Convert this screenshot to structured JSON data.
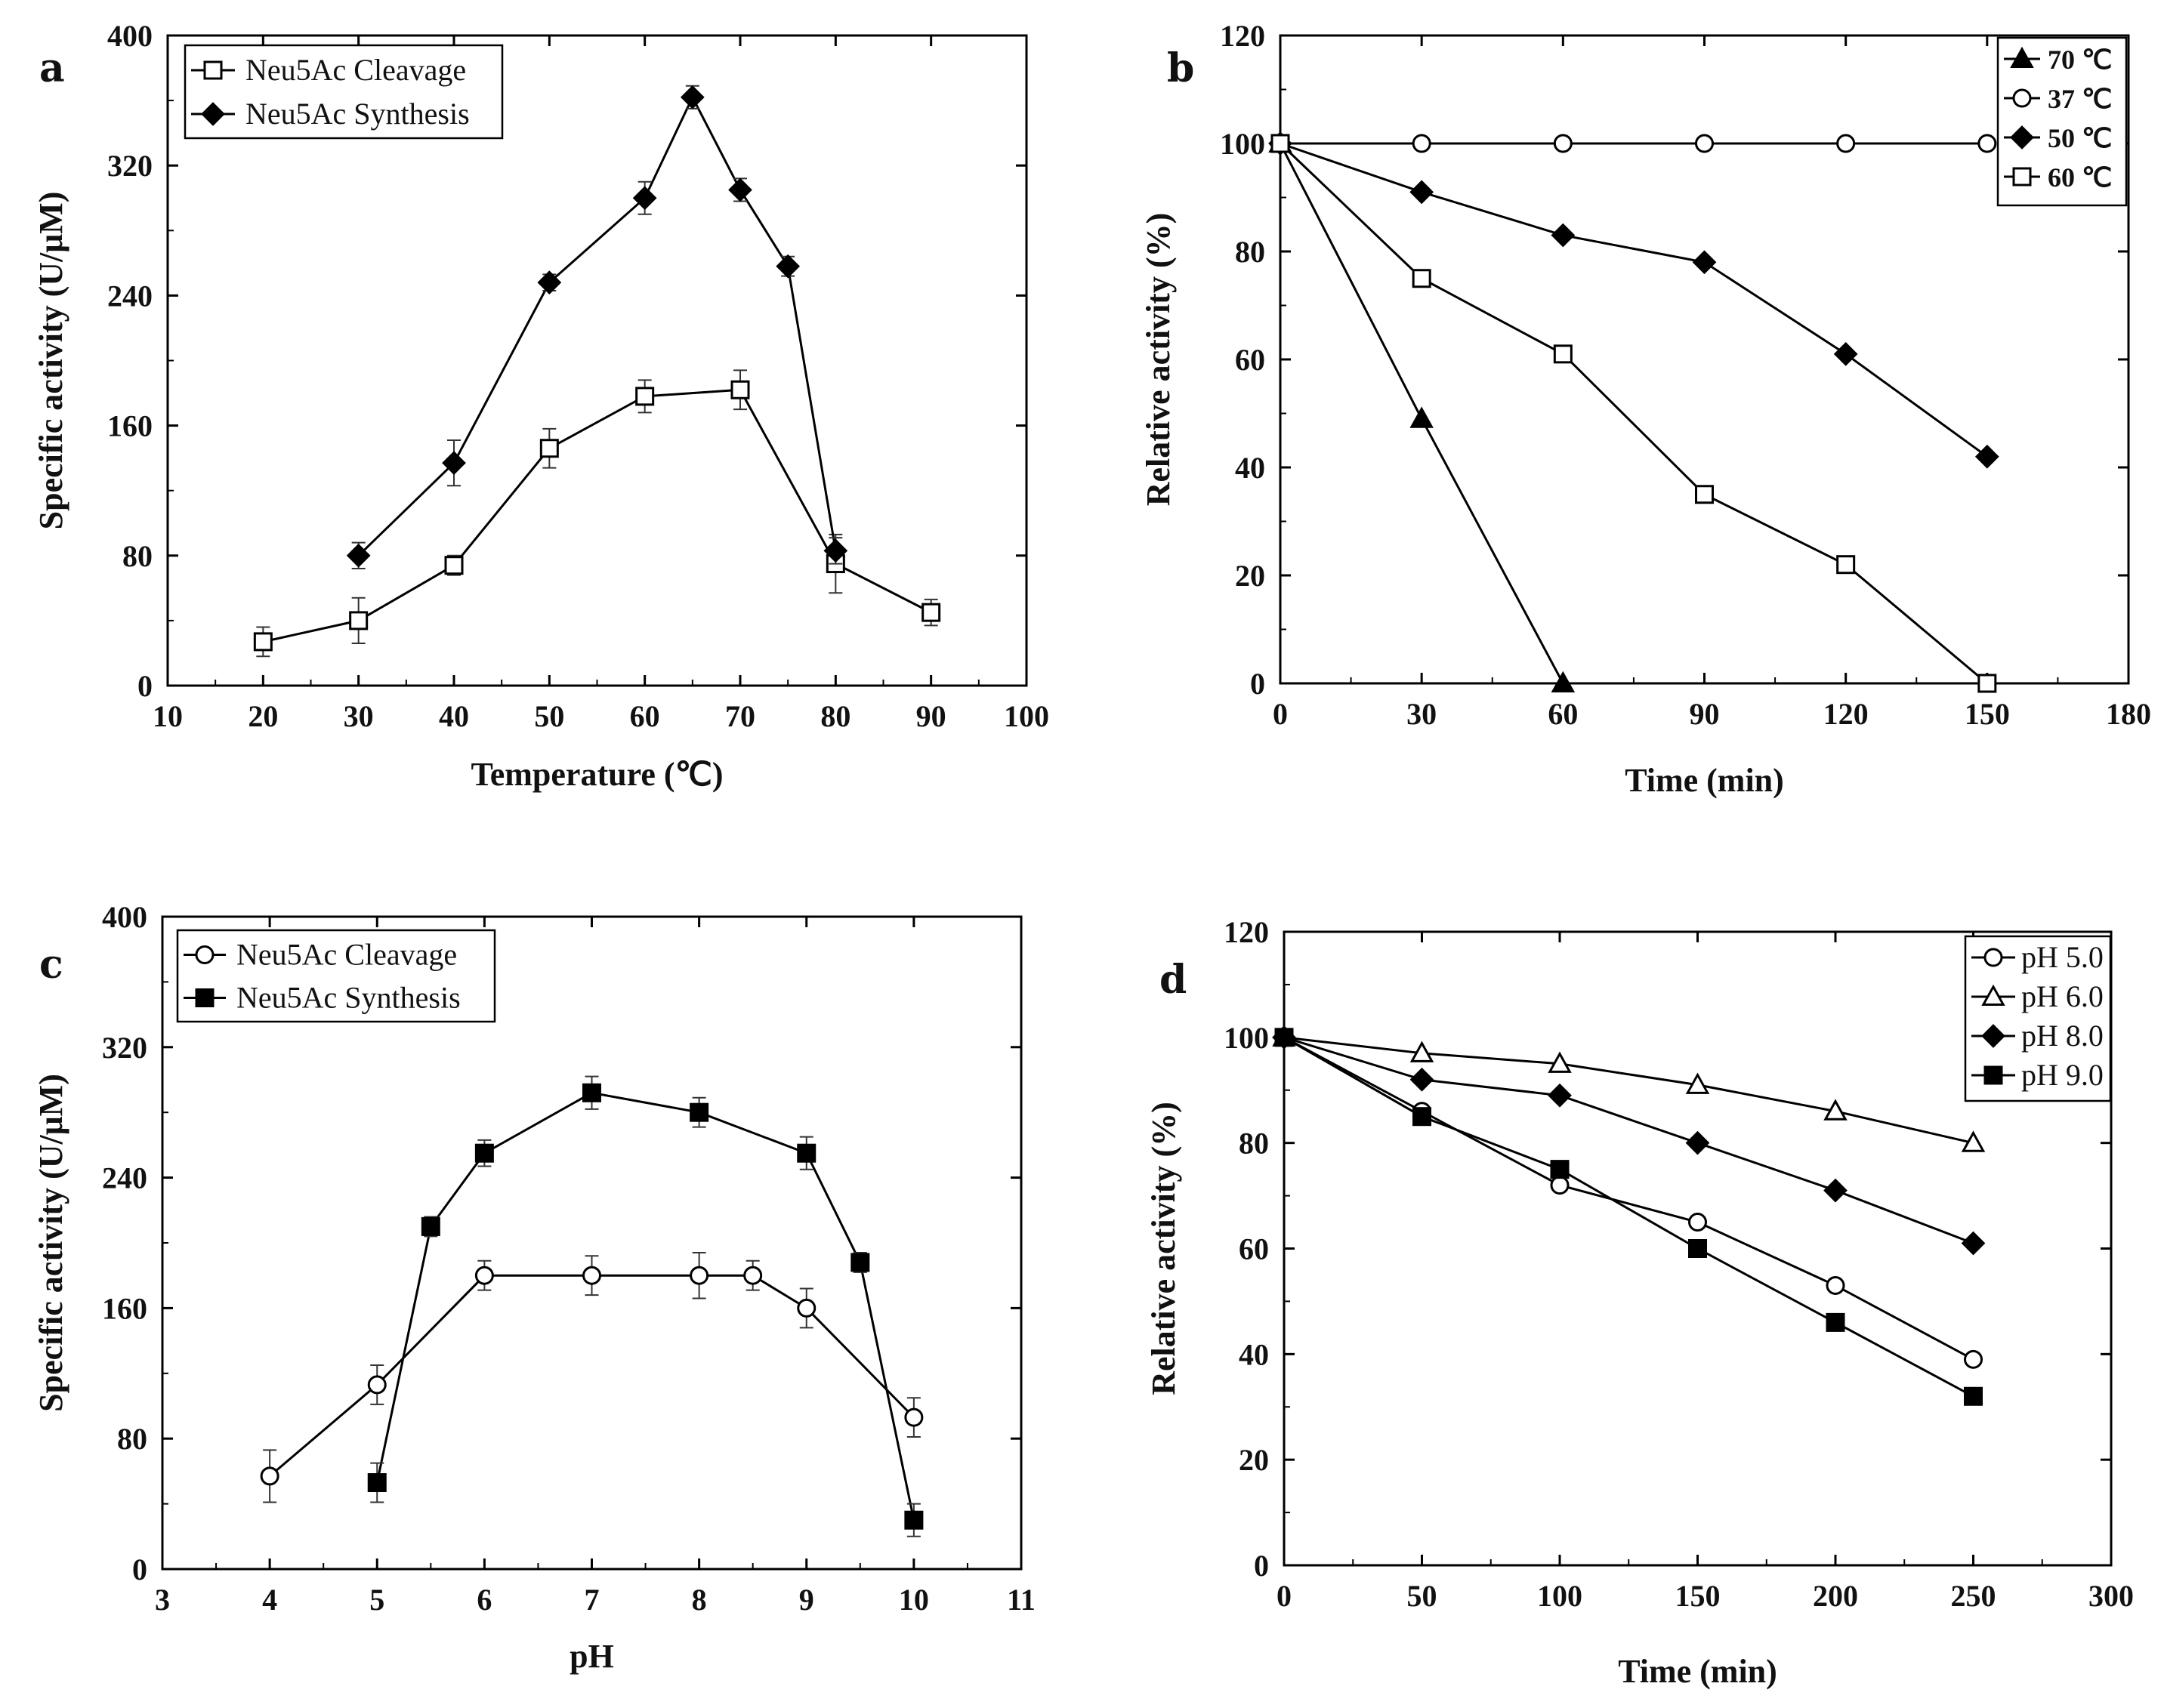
{
  "chart_data": [
    {
      "id": "a",
      "type": "line",
      "panel_label": "a",
      "xlabel": "Temperature (℃)",
      "ylabel": "Specific activity (U/μM)",
      "xlim": [
        10,
        100
      ],
      "ylim": [
        0,
        400
      ],
      "xticks": [
        10,
        20,
        30,
        40,
        50,
        60,
        70,
        80,
        90,
        100
      ],
      "yticks": [
        0,
        80,
        160,
        240,
        320,
        400
      ],
      "legend_position": "top-left",
      "legend_style": "regular",
      "series": [
        {
          "name": "Neu5Ac Cleavage",
          "marker": "square-open",
          "points": [
            {
              "x": 20,
              "y": 27,
              "err": 9
            },
            {
              "x": 30,
              "y": 40,
              "err": 14
            },
            {
              "x": 40,
              "y": 74,
              "err": 6
            },
            {
              "x": 50,
              "y": 146,
              "err": 12
            },
            {
              "x": 60,
              "y": 178,
              "err": 10
            },
            {
              "x": 70,
              "y": 182,
              "err": 12
            },
            {
              "x": 80,
              "y": 75,
              "err": 18
            },
            {
              "x": 90,
              "y": 45,
              "err": 8
            }
          ]
        },
        {
          "name": "Neu5Ac Synthesis",
          "marker": "diamond-filled",
          "points": [
            {
              "x": 30,
              "y": 80,
              "err": 8
            },
            {
              "x": 40,
              "y": 137,
              "err": 14
            },
            {
              "x": 50,
              "y": 248,
              "err": 5
            },
            {
              "x": 60,
              "y": 300,
              "err": 10
            },
            {
              "x": 65,
              "y": 362,
              "err": 7
            },
            {
              "x": 70,
              "y": 305,
              "err": 7
            },
            {
              "x": 75,
              "y": 258,
              "err": 6
            },
            {
              "x": 80,
              "y": 83,
              "err": 8
            }
          ]
        }
      ]
    },
    {
      "id": "b",
      "type": "line",
      "panel_label": "b",
      "xlabel": "Time (min)",
      "ylabel": "Relative activity (%)",
      "xlim": [
        0,
        180
      ],
      "ylim": [
        0,
        120
      ],
      "xticks": [
        0,
        30,
        60,
        90,
        120,
        150,
        180
      ],
      "yticks": [
        0,
        20,
        40,
        60,
        80,
        100,
        120
      ],
      "legend_position": "top-right",
      "legend_style": "bold",
      "series": [
        {
          "name": "70 ℃",
          "marker": "triangle-filled",
          "points": [
            {
              "x": 0,
              "y": 100
            },
            {
              "x": 30,
              "y": 49
            },
            {
              "x": 60,
              "y": 0
            }
          ]
        },
        {
          "name": "37 ℃",
          "marker": "circle-open",
          "points": [
            {
              "x": 0,
              "y": 100
            },
            {
              "x": 30,
              "y": 100
            },
            {
              "x": 60,
              "y": 100
            },
            {
              "x": 90,
              "y": 100
            },
            {
              "x": 120,
              "y": 100
            },
            {
              "x": 150,
              "y": 100
            }
          ]
        },
        {
          "name": "50 ℃",
          "marker": "diamond-filled",
          "points": [
            {
              "x": 0,
              "y": 100
            },
            {
              "x": 30,
              "y": 91
            },
            {
              "x": 60,
              "y": 83
            },
            {
              "x": 90,
              "y": 78
            },
            {
              "x": 120,
              "y": 61
            },
            {
              "x": 150,
              "y": 42
            }
          ]
        },
        {
          "name": "60 ℃",
          "marker": "square-open",
          "points": [
            {
              "x": 0,
              "y": 100
            },
            {
              "x": 30,
              "y": 75
            },
            {
              "x": 60,
              "y": 61
            },
            {
              "x": 90,
              "y": 35
            },
            {
              "x": 120,
              "y": 22
            },
            {
              "x": 150,
              "y": 0
            }
          ]
        }
      ]
    },
    {
      "id": "c",
      "type": "line",
      "panel_label": "c",
      "xlabel": "pH",
      "ylabel": "Specific activity (U/μM)",
      "xlim": [
        3,
        11
      ],
      "ylim": [
        0,
        400
      ],
      "xticks": [
        3,
        4,
        5,
        6,
        7,
        8,
        9,
        10,
        11
      ],
      "yticks": [
        0,
        80,
        160,
        240,
        320,
        400
      ],
      "legend_position": "top-left",
      "legend_style": "regular",
      "series": [
        {
          "name": "Neu5Ac Cleavage",
          "marker": "circle-open",
          "points": [
            {
              "x": 4,
              "y": 57,
              "err": 16
            },
            {
              "x": 5,
              "y": 113,
              "err": 12
            },
            {
              "x": 6,
              "y": 180,
              "err": 9
            },
            {
              "x": 7,
              "y": 180,
              "err": 12
            },
            {
              "x": 8,
              "y": 180,
              "err": 14
            },
            {
              "x": 8.5,
              "y": 180,
              "err": 9
            },
            {
              "x": 9,
              "y": 160,
              "err": 12
            },
            {
              "x": 10,
              "y": 93,
              "err": 12
            }
          ]
        },
        {
          "name": "Neu5Ac Synthesis",
          "marker": "square-filled",
          "points": [
            {
              "x": 5,
              "y": 53,
              "err": 12
            },
            {
              "x": 5.5,
              "y": 210,
              "err": 6
            },
            {
              "x": 6,
              "y": 255,
              "err": 8
            },
            {
              "x": 7,
              "y": 292,
              "err": 10
            },
            {
              "x": 8,
              "y": 280,
              "err": 9
            },
            {
              "x": 9,
              "y": 255,
              "err": 10
            },
            {
              "x": 9.5,
              "y": 188,
              "err": 6
            },
            {
              "x": 10,
              "y": 30,
              "err": 10
            }
          ]
        }
      ]
    },
    {
      "id": "d",
      "type": "line",
      "panel_label": "d",
      "xlabel": "Time (min)",
      "ylabel": "Relative activity (%)",
      "xlim": [
        0,
        300
      ],
      "ylim": [
        0,
        120
      ],
      "xticks": [
        0,
        50,
        100,
        150,
        200,
        250,
        300
      ],
      "yticks": [
        0,
        20,
        40,
        60,
        80,
        100,
        120
      ],
      "legend_position": "top-right",
      "legend_style": "regular",
      "series": [
        {
          "name": "pH 5.0",
          "marker": "circle-open",
          "points": [
            {
              "x": 0,
              "y": 100
            },
            {
              "x": 50,
              "y": 86
            },
            {
              "x": 100,
              "y": 72
            },
            {
              "x": 150,
              "y": 65
            },
            {
              "x": 200,
              "y": 53
            },
            {
              "x": 250,
              "y": 39
            }
          ]
        },
        {
          "name": "pH 6.0",
          "marker": "triangle-open",
          "points": [
            {
              "x": 0,
              "y": 100
            },
            {
              "x": 50,
              "y": 97
            },
            {
              "x": 100,
              "y": 95
            },
            {
              "x": 150,
              "y": 91
            },
            {
              "x": 200,
              "y": 86
            },
            {
              "x": 250,
              "y": 80
            }
          ]
        },
        {
          "name": "pH 8.0",
          "marker": "diamond-filled",
          "points": [
            {
              "x": 0,
              "y": 100
            },
            {
              "x": 50,
              "y": 92
            },
            {
              "x": 100,
              "y": 89
            },
            {
              "x": 150,
              "y": 80
            },
            {
              "x": 200,
              "y": 71
            },
            {
              "x": 250,
              "y": 61
            }
          ]
        },
        {
          "name": "pH 9.0",
          "marker": "square-filled",
          "points": [
            {
              "x": 0,
              "y": 100
            },
            {
              "x": 50,
              "y": 85
            },
            {
              "x": 100,
              "y": 75
            },
            {
              "x": 150,
              "y": 60
            },
            {
              "x": 200,
              "y": 46
            },
            {
              "x": 250,
              "y": 32
            }
          ]
        }
      ]
    }
  ]
}
